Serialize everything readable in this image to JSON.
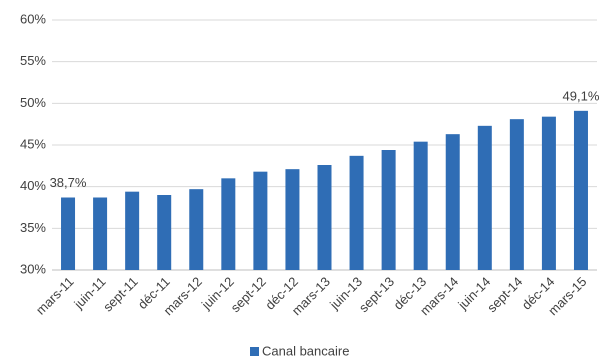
{
  "chart_data": {
    "type": "bar",
    "categories": [
      "mars-11",
      "juin-11",
      "sept-11",
      "déc-11",
      "mars-12",
      "juin-12",
      "sept-12",
      "déc-12",
      "mars-13",
      "juin-13",
      "sept-13",
      "déc-13",
      "mars-14",
      "juin-14",
      "sept-14",
      "déc-14",
      "mars-15"
    ],
    "series": [
      {
        "name": "Canal bancaire",
        "color": "#2f6db5",
        "values": [
          38.7,
          38.7,
          39.4,
          39.0,
          39.7,
          41.0,
          41.8,
          42.1,
          42.6,
          43.7,
          44.4,
          45.4,
          46.3,
          47.3,
          48.1,
          48.4,
          49.1
        ],
        "value_labels": [
          "38,7%",
          null,
          null,
          null,
          null,
          null,
          null,
          null,
          null,
          null,
          null,
          null,
          null,
          null,
          null,
          null,
          "49,1%"
        ]
      }
    ],
    "ylim": [
      30,
      60
    ],
    "yticks": [
      {
        "value": 30,
        "label": "30%"
      },
      {
        "value": 35,
        "label": "35%"
      },
      {
        "value": 40,
        "label": "40%"
      },
      {
        "value": 45,
        "label": "45%"
      },
      {
        "value": 50,
        "label": "50%"
      },
      {
        "value": 55,
        "label": "55%"
      },
      {
        "value": 60,
        "label": "60%"
      }
    ],
    "grid": true,
    "legend": "bottom"
  }
}
